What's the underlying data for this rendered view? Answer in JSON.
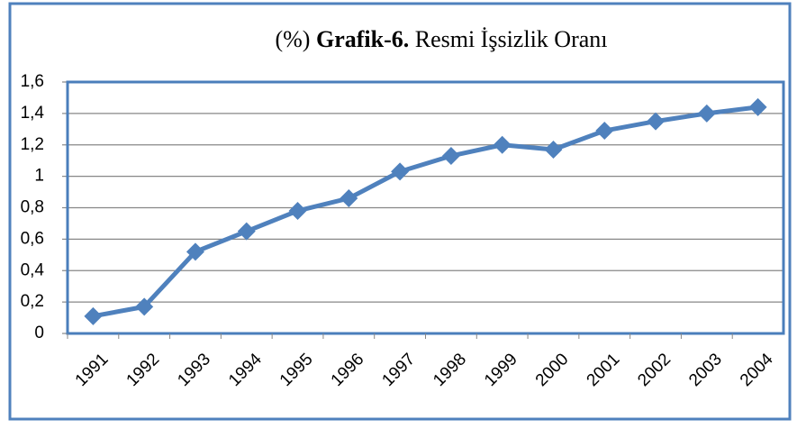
{
  "chart_data": {
    "type": "line",
    "title": [
      "(%)",
      "Grafik-6.",
      "Resmi İşsizlik Oranı"
    ],
    "categories": [
      "1991",
      "1992",
      "1993",
      "1994",
      "1995",
      "1996",
      "1997",
      "1998",
      "1999",
      "2000",
      "2001",
      "2002",
      "2003",
      "2004"
    ],
    "series": [
      {
        "color": "#4f81bd",
        "values": [
          0.11,
          0.17,
          0.52,
          0.65,
          0.78,
          0.86,
          1.03,
          1.13,
          1.2,
          1.17,
          1.29,
          1.35,
          1.4,
          1.44
        ]
      }
    ],
    "ylim": [
      0,
      1.6
    ],
    "yticks": [
      0,
      {
        "value": 0.2,
        "label": "0,2"
      },
      {
        "value": 0.4,
        "label": "0,4"
      },
      {
        "value": 0.6,
        "label": "0,6"
      },
      {
        "value": 0.8,
        "label": "0,8"
      },
      1,
      {
        "value": 1.2,
        "label": "1,2"
      },
      {
        "value": 1.4,
        "label": "1,4"
      },
      {
        "value": 1.6,
        "label": "1,6"
      }
    ],
    "grid": true
  }
}
